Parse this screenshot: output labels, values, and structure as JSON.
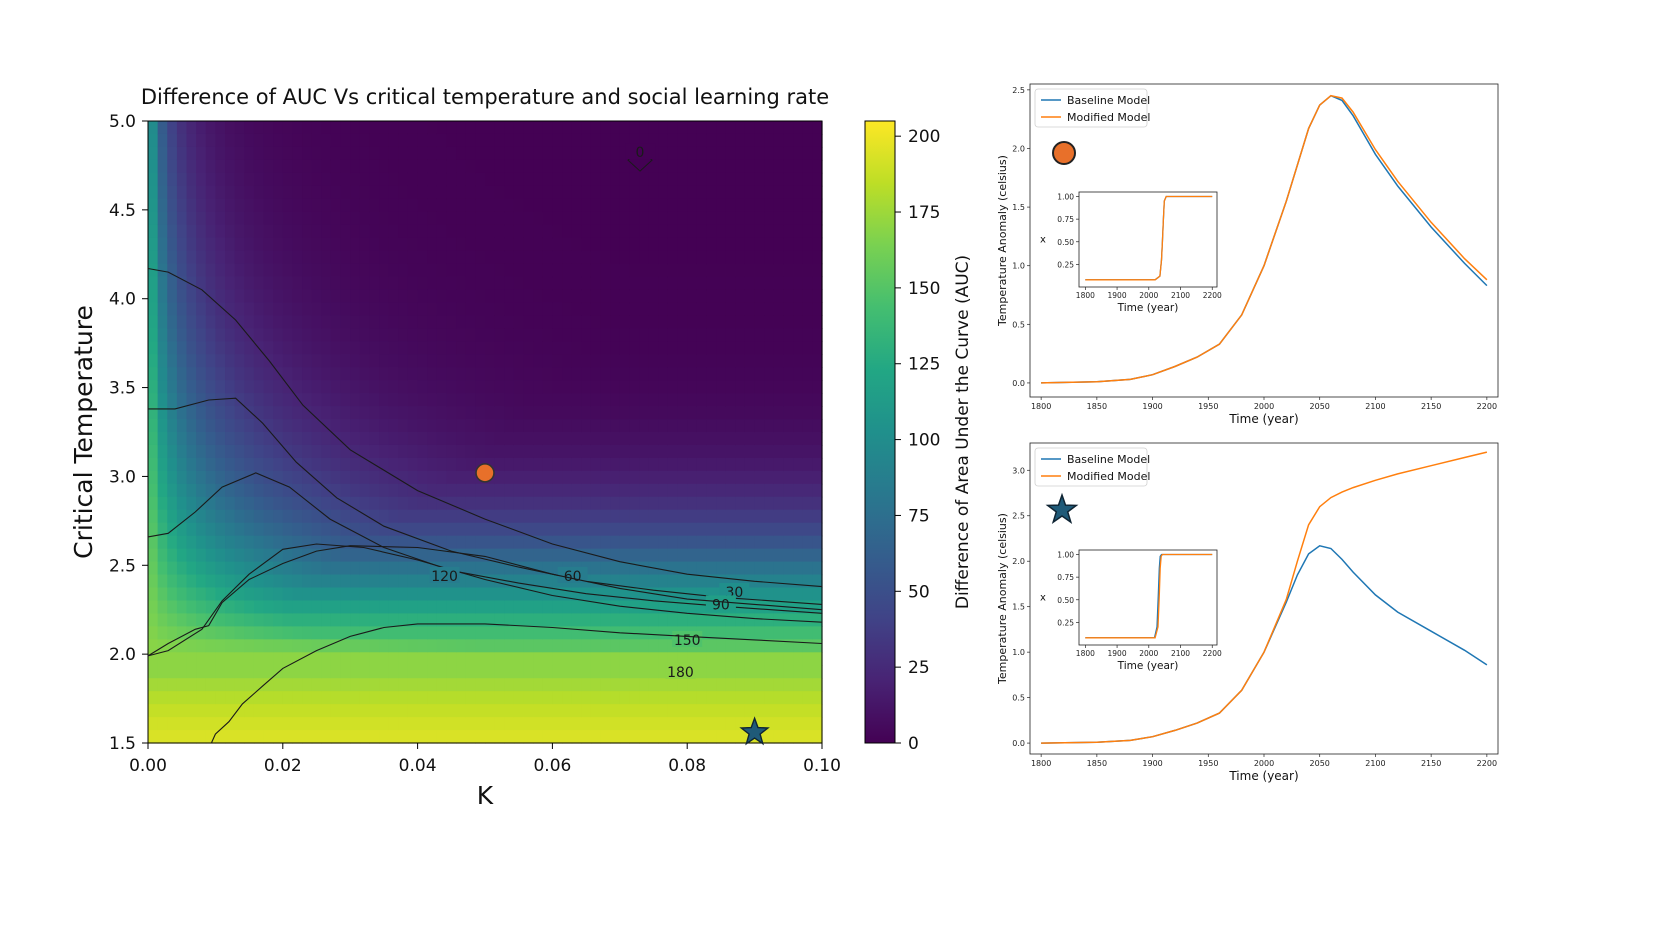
{
  "chart_data": [
    {
      "type": "heatmap",
      "title": "Difference of AUC Vs critical temperature and social learning rate",
      "xlabel": "K",
      "ylabel": "Critical Temperature",
      "xlim": [
        0.0,
        0.1
      ],
      "ylim": [
        1.5,
        5.0
      ],
      "x_ticks": [
        "0.00",
        "0.02",
        "0.04",
        "0.06",
        "0.08",
        "0.10"
      ],
      "y_ticks": [
        "1.5",
        "2.0",
        "2.5",
        "3.0",
        "3.5",
        "4.0",
        "4.5",
        "5.0"
      ],
      "colorbar": {
        "label": "Difference of Area Under the Curve (AUC)",
        "range": [
          0,
          205
        ],
        "ticks": [
          "0",
          "25",
          "50",
          "75",
          "100",
          "125",
          "150",
          "175",
          "200"
        ],
        "colormap": "viridis"
      },
      "contours": [
        {
          "level": "0",
          "label_at": [
            0.073,
            4.78
          ]
        },
        {
          "level": "30",
          "label_at": [
            0.087,
            2.35
          ],
          "points": [
            [
              0.0,
              4.17
            ],
            [
              0.003,
              4.15
            ],
            [
              0.008,
              4.05
            ],
            [
              0.013,
              3.88
            ],
            [
              0.018,
              3.65
            ],
            [
              0.023,
              3.4
            ],
            [
              0.03,
              3.15
            ],
            [
              0.04,
              2.92
            ],
            [
              0.05,
              2.76
            ],
            [
              0.06,
              2.62
            ],
            [
              0.07,
              2.52
            ],
            [
              0.08,
              2.45
            ],
            [
              0.09,
              2.41
            ],
            [
              0.1,
              2.38
            ]
          ]
        },
        {
          "level": "60",
          "label_at": [
            0.063,
            2.44
          ],
          "points": [
            [
              0.0,
              3.38
            ],
            [
              0.004,
              3.38
            ],
            [
              0.009,
              3.43
            ],
            [
              0.013,
              3.44
            ],
            [
              0.017,
              3.3
            ],
            [
              0.022,
              3.08
            ],
            [
              0.028,
              2.88
            ],
            [
              0.035,
              2.72
            ],
            [
              0.045,
              2.58
            ],
            [
              0.055,
              2.49
            ],
            [
              0.065,
              2.41
            ],
            [
              0.075,
              2.36
            ],
            [
              0.085,
              2.32
            ],
            [
              0.1,
              2.28
            ]
          ]
        },
        {
          "level": "90",
          "label_at": [
            0.085,
            2.28
          ],
          "points": [
            [
              0.0,
              2.66
            ],
            [
              0.003,
              2.68
            ],
            [
              0.007,
              2.8
            ],
            [
              0.011,
              2.94
            ],
            [
              0.016,
              3.02
            ],
            [
              0.021,
              2.94
            ],
            [
              0.027,
              2.76
            ],
            [
              0.035,
              2.6
            ],
            [
              0.045,
              2.47
            ],
            [
              0.055,
              2.4
            ],
            [
              0.065,
              2.34
            ],
            [
              0.075,
              2.3
            ],
            [
              0.085,
              2.27
            ],
            [
              0.1,
              2.23
            ]
          ]
        },
        {
          "level": "120",
          "label_at": [
            0.044,
            2.44
          ],
          "points": [
            [
              0.0,
              1.99
            ],
            [
              0.003,
              2.02
            ],
            [
              0.008,
              2.14
            ],
            [
              0.011,
              2.3
            ],
            [
              0.015,
              2.45
            ],
            [
              0.02,
              2.59
            ],
            [
              0.025,
              2.62
            ],
            [
              0.032,
              2.6
            ],
            [
              0.04,
              2.53
            ],
            [
              0.05,
              2.42
            ],
            [
              0.06,
              2.33
            ],
            [
              0.07,
              2.27
            ],
            [
              0.08,
              2.23
            ],
            [
              0.09,
              2.2
            ],
            [
              0.1,
              2.18
            ]
          ]
        },
        {
          "level": "150",
          "label_at": [
            0.08,
            2.08
          ],
          "points": [
            [
              0.0,
              1.99
            ],
            [
              0.003,
              2.06
            ],
            [
              0.007,
              2.14
            ],
            [
              0.009,
              2.16
            ],
            [
              0.011,
              2.29
            ],
            [
              0.015,
              2.42
            ],
            [
              0.02,
              2.51
            ],
            [
              0.025,
              2.58
            ],
            [
              0.03,
              2.61
            ],
            [
              0.04,
              2.6
            ],
            [
              0.05,
              2.55
            ],
            [
              0.06,
              2.45
            ],
            [
              0.07,
              2.37
            ],
            [
              0.08,
              2.31
            ],
            [
              0.09,
              2.28
            ],
            [
              0.1,
              2.25
            ]
          ]
        },
        {
          "level": "180",
          "label_at": [
            0.079,
            1.9
          ],
          "points": [
            [
              0.0094,
              1.5
            ],
            [
              0.01,
              1.55
            ],
            [
              0.012,
              1.62
            ],
            [
              0.014,
              1.72
            ],
            [
              0.017,
              1.82
            ],
            [
              0.02,
              1.92
            ],
            [
              0.025,
              2.02
            ],
            [
              0.03,
              2.1
            ],
            [
              0.035,
              2.15
            ],
            [
              0.04,
              2.17
            ],
            [
              0.05,
              2.17
            ],
            [
              0.06,
              2.15
            ],
            [
              0.07,
              2.12
            ],
            [
              0.08,
              2.1
            ],
            [
              0.09,
              2.08
            ],
            [
              0.1,
              2.06
            ]
          ]
        }
      ],
      "markers": [
        {
          "shape": "circle",
          "color": "#e8702a",
          "x": 0.05,
          "y": 3.02
        },
        {
          "shape": "star",
          "color": "#1f5a78",
          "x": 0.09,
          "y": 1.56
        }
      ]
    },
    {
      "type": "line",
      "marker": {
        "shape": "circle",
        "color": "#e8702a"
      },
      "xlabel": "Time (year)",
      "ylabel": "Temperature Anomaly (celsius)",
      "xlim": [
        1790,
        2210
      ],
      "ylim": [
        -0.12,
        2.55
      ],
      "x_ticks": [
        "1800",
        "1850",
        "1900",
        "1950",
        "2000",
        "2050",
        "2100",
        "2150",
        "2200"
      ],
      "y_ticks": [
        "0.0",
        "0.5",
        "1.0",
        "1.5",
        "2.0",
        "2.5"
      ],
      "legend": "top-left",
      "series": [
        {
          "name": "Baseline Model",
          "color": "#1f77b4",
          "x": [
            1800,
            1850,
            1880,
            1900,
            1920,
            1940,
            1960,
            1980,
            2000,
            2020,
            2040,
            2050,
            2060,
            2070,
            2080,
            2100,
            2120,
            2150,
            2180,
            2200
          ],
          "y": [
            0.0,
            0.01,
            0.03,
            0.07,
            0.14,
            0.22,
            0.33,
            0.58,
            1.0,
            1.55,
            2.17,
            2.37,
            2.45,
            2.41,
            2.28,
            1.95,
            1.68,
            1.33,
            1.02,
            0.83
          ]
        },
        {
          "name": "Modified Model",
          "color": "#ff7f0e",
          "x": [
            1800,
            1850,
            1880,
            1900,
            1920,
            1940,
            1960,
            1980,
            2000,
            2020,
            2040,
            2050,
            2060,
            2070,
            2080,
            2100,
            2120,
            2150,
            2180,
            2200
          ],
          "y": [
            0.0,
            0.01,
            0.03,
            0.07,
            0.14,
            0.22,
            0.33,
            0.58,
            1.0,
            1.55,
            2.17,
            2.37,
            2.45,
            2.43,
            2.31,
            1.99,
            1.72,
            1.37,
            1.06,
            0.88
          ]
        }
      ],
      "inset": {
        "xlabel": "Time (year)",
        "ylabel": "x",
        "xlim": [
          1780,
          2215
        ],
        "ylim": [
          0.0,
          1.05
        ],
        "x_ticks": [
          "1800",
          "1900",
          "2000",
          "2100",
          "2200"
        ],
        "y_ticks": [
          "0.25",
          "0.50",
          "0.75",
          "1.00"
        ],
        "series": [
          {
            "name": "Baseline Model",
            "color": "#1f77b4",
            "x": [
              1800,
              2020,
              2035,
              2040,
              2043,
              2046,
              2049,
              2055,
              2200
            ],
            "y": [
              0.08,
              0.08,
              0.12,
              0.3,
              0.5,
              0.75,
              0.95,
              1.0,
              1.0
            ]
          },
          {
            "name": "Modified Model",
            "color": "#ff7f0e",
            "x": [
              1800,
              2020,
              2035,
              2040,
              2043,
              2046,
              2049,
              2055,
              2200
            ],
            "y": [
              0.08,
              0.08,
              0.12,
              0.3,
              0.5,
              0.75,
              0.95,
              1.0,
              1.0
            ]
          }
        ]
      }
    },
    {
      "type": "line",
      "marker": {
        "shape": "star",
        "color": "#1f5a78"
      },
      "xlabel": "Time (year)",
      "ylabel": "Temperature Anomaly (celsius)",
      "xlim": [
        1790,
        2210
      ],
      "ylim": [
        -0.12,
        3.3
      ],
      "x_ticks": [
        "1800",
        "1850",
        "1900",
        "1950",
        "2000",
        "2050",
        "2100",
        "2150",
        "2200"
      ],
      "y_ticks": [
        "0.0",
        "0.5",
        "1.0",
        "1.5",
        "2.0",
        "2.5",
        "3.0"
      ],
      "legend": "top-left",
      "series": [
        {
          "name": "Baseline Model",
          "color": "#1f77b4",
          "x": [
            1800,
            1850,
            1880,
            1900,
            1920,
            1940,
            1960,
            1980,
            2000,
            2020,
            2030,
            2040,
            2050,
            2060,
            2070,
            2080,
            2100,
            2120,
            2150,
            2180,
            2200
          ],
          "y": [
            0.0,
            0.01,
            0.03,
            0.07,
            0.14,
            0.22,
            0.33,
            0.58,
            1.0,
            1.55,
            1.85,
            2.08,
            2.17,
            2.14,
            2.02,
            1.88,
            1.63,
            1.44,
            1.23,
            1.02,
            0.86
          ]
        },
        {
          "name": "Modified Model",
          "color": "#ff7f0e",
          "x": [
            1800,
            1850,
            1880,
            1900,
            1920,
            1940,
            1960,
            1980,
            2000,
            2020,
            2030,
            2040,
            2050,
            2060,
            2070,
            2080,
            2100,
            2120,
            2150,
            2180,
            2200
          ],
          "y": [
            0.0,
            0.01,
            0.03,
            0.07,
            0.14,
            0.22,
            0.33,
            0.58,
            1.0,
            1.58,
            2.0,
            2.4,
            2.6,
            2.7,
            2.76,
            2.81,
            2.89,
            2.96,
            3.05,
            3.14,
            3.2
          ]
        }
      ],
      "inset": {
        "xlabel": "Time (year)",
        "ylabel": "x",
        "xlim": [
          1780,
          2215
        ],
        "ylim": [
          0.0,
          1.05
        ],
        "x_ticks": [
          "1800",
          "1900",
          "2000",
          "2100",
          "2200"
        ],
        "y_ticks": [
          "0.25",
          "0.50",
          "0.75",
          "1.00"
        ],
        "series": [
          {
            "name": "Baseline Model",
            "color": "#1f77b4",
            "x": [
              1800,
              2018,
              2026,
              2030,
              2033,
              2036,
              2040,
              2200
            ],
            "y": [
              0.08,
              0.08,
              0.2,
              0.55,
              0.85,
              0.98,
              1.0,
              1.0
            ]
          },
          {
            "name": "Modified Model",
            "color": "#ff7f0e",
            "x": [
              1800,
              2020,
              2029,
              2033,
              2036,
              2039,
              2043,
              2200
            ],
            "y": [
              0.08,
              0.08,
              0.2,
              0.55,
              0.85,
              0.98,
              1.0,
              1.0
            ]
          }
        ]
      }
    }
  ]
}
